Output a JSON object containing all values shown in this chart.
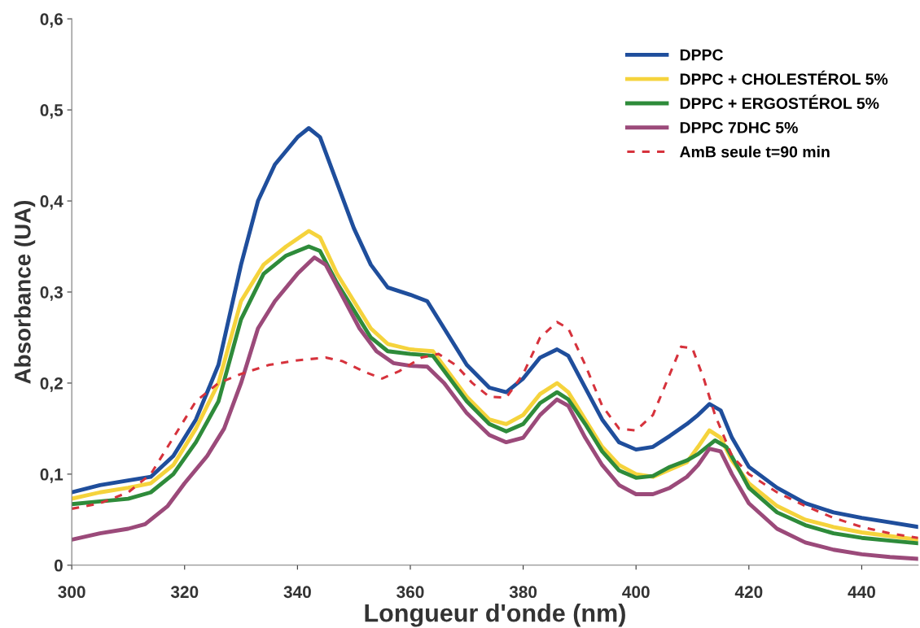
{
  "chart_data": {
    "type": "line",
    "xlabel": "Longueur d'onde (nm)",
    "ylabel": "Absorbance (UA)",
    "xlim": [
      300,
      450
    ],
    "xticks": [
      300,
      320,
      340,
      360,
      380,
      400,
      420,
      440
    ],
    "ylim": [
      0,
      0.6
    ],
    "yticks": [
      {
        "value": 0,
        "label": "0"
      },
      {
        "value": 0.1,
        "label": "0,1"
      },
      {
        "value": 0.2,
        "label": "0,2"
      },
      {
        "value": 0.3,
        "label": "0,3"
      },
      {
        "value": 0.4,
        "label": "0,4"
      },
      {
        "value": 0.5,
        "label": "0,5"
      },
      {
        "value": 0.6,
        "label": "0,6"
      }
    ],
    "grid": false,
    "legend": "top right",
    "marker": "none",
    "series": [
      {
        "name": "DPPC",
        "color": "#1f4e9c",
        "line_style": "solid",
        "x": [
          300,
          305,
          310,
          314,
          318,
          322,
          326,
          330,
          333,
          336,
          340,
          342,
          344,
          347,
          350,
          353,
          356,
          360,
          363,
          366,
          370,
          374,
          377,
          380,
          383,
          386,
          388,
          391,
          394,
          397,
          400,
          403,
          406,
          409,
          411,
          413,
          415,
          417,
          420,
          425,
          430,
          435,
          440,
          445,
          450
        ],
        "values": [
          0.08,
          0.088,
          0.093,
          0.097,
          0.12,
          0.16,
          0.22,
          0.33,
          0.4,
          0.44,
          0.47,
          0.48,
          0.47,
          0.42,
          0.37,
          0.33,
          0.305,
          0.297,
          0.29,
          0.26,
          0.22,
          0.195,
          0.19,
          0.205,
          0.228,
          0.237,
          0.23,
          0.195,
          0.16,
          0.135,
          0.127,
          0.13,
          0.142,
          0.155,
          0.165,
          0.177,
          0.17,
          0.14,
          0.108,
          0.085,
          0.068,
          0.058,
          0.052,
          0.047,
          0.042
        ]
      },
      {
        "name": "DPPC + CHOLESTÉROL 5%",
        "color": "#f5d33c",
        "line_style": "solid",
        "x": [
          300,
          305,
          310,
          314,
          318,
          322,
          326,
          330,
          334,
          338,
          342,
          344,
          347,
          350,
          353,
          356,
          360,
          364,
          367,
          370,
          374,
          377,
          380,
          383,
          386,
          388,
          391,
          394,
          397,
          400,
          403,
          406,
          409,
          411,
          413,
          415,
          417,
          420,
          425,
          430,
          435,
          440,
          445,
          450
        ],
        "values": [
          0.073,
          0.08,
          0.085,
          0.09,
          0.11,
          0.15,
          0.2,
          0.29,
          0.33,
          0.35,
          0.367,
          0.36,
          0.32,
          0.29,
          0.26,
          0.243,
          0.237,
          0.235,
          0.21,
          0.185,
          0.16,
          0.155,
          0.165,
          0.188,
          0.2,
          0.19,
          0.16,
          0.13,
          0.11,
          0.1,
          0.097,
          0.105,
          0.113,
          0.13,
          0.148,
          0.14,
          0.115,
          0.09,
          0.065,
          0.05,
          0.042,
          0.036,
          0.032,
          0.028
        ]
      },
      {
        "name": "DPPC + ERGOSTÉROL 5%",
        "color": "#2e8b3a",
        "line_style": "solid",
        "x": [
          300,
          305,
          310,
          314,
          318,
          322,
          326,
          330,
          334,
          338,
          342,
          344,
          347,
          350,
          353,
          356,
          360,
          364,
          367,
          370,
          374,
          377,
          380,
          383,
          386,
          388,
          391,
          394,
          397,
          400,
          403,
          406,
          409,
          411,
          414,
          416,
          418,
          420,
          425,
          430,
          435,
          440,
          445,
          450
        ],
        "values": [
          0.067,
          0.07,
          0.073,
          0.08,
          0.1,
          0.135,
          0.18,
          0.27,
          0.32,
          0.34,
          0.35,
          0.345,
          0.31,
          0.28,
          0.25,
          0.235,
          0.232,
          0.23,
          0.205,
          0.18,
          0.155,
          0.147,
          0.155,
          0.178,
          0.19,
          0.182,
          0.155,
          0.125,
          0.104,
          0.096,
          0.098,
          0.108,
          0.115,
          0.122,
          0.137,
          0.13,
          0.108,
          0.085,
          0.058,
          0.044,
          0.035,
          0.03,
          0.027,
          0.024
        ]
      },
      {
        "name": "DPPC 7DHC 5%",
        "color": "#9b4a7a",
        "line_style": "solid",
        "x": [
          300,
          305,
          310,
          313,
          317,
          320,
          324,
          327,
          330,
          333,
          336,
          340,
          343,
          345,
          348,
          351,
          354,
          357,
          360,
          363,
          366,
          370,
          374,
          377,
          380,
          383,
          386,
          388,
          391,
          394,
          397,
          400,
          403,
          406,
          409,
          411,
          413,
          415,
          417,
          420,
          425,
          430,
          435,
          440,
          445,
          450
        ],
        "values": [
          0.028,
          0.035,
          0.04,
          0.045,
          0.065,
          0.09,
          0.12,
          0.15,
          0.2,
          0.26,
          0.29,
          0.32,
          0.338,
          0.33,
          0.295,
          0.26,
          0.235,
          0.222,
          0.219,
          0.218,
          0.2,
          0.167,
          0.143,
          0.135,
          0.14,
          0.165,
          0.182,
          0.175,
          0.14,
          0.11,
          0.088,
          0.078,
          0.078,
          0.085,
          0.097,
          0.11,
          0.128,
          0.125,
          0.1,
          0.068,
          0.04,
          0.025,
          0.017,
          0.012,
          0.009,
          0.007
        ]
      },
      {
        "name": "AmB seule t=90 min",
        "color": "#d6323c",
        "line_style": "dashed",
        "x": [
          300,
          305,
          310,
          314,
          318,
          322,
          326,
          330,
          335,
          340,
          345,
          348,
          352,
          355,
          358,
          362,
          365,
          368,
          371,
          374,
          377,
          380,
          383,
          386,
          388,
          391,
          394,
          397,
          400,
          403,
          406,
          408,
          410,
          412,
          414,
          417,
          420,
          425,
          430,
          435,
          440,
          445,
          450
        ],
        "values": [
          0.062,
          0.068,
          0.08,
          0.1,
          0.14,
          0.18,
          0.2,
          0.21,
          0.22,
          0.225,
          0.228,
          0.224,
          0.212,
          0.205,
          0.213,
          0.228,
          0.232,
          0.22,
          0.2,
          0.185,
          0.184,
          0.21,
          0.25,
          0.267,
          0.26,
          0.22,
          0.175,
          0.15,
          0.148,
          0.165,
          0.21,
          0.24,
          0.238,
          0.205,
          0.165,
          0.12,
          0.1,
          0.08,
          0.065,
          0.052,
          0.042,
          0.035,
          0.03
        ]
      }
    ]
  }
}
